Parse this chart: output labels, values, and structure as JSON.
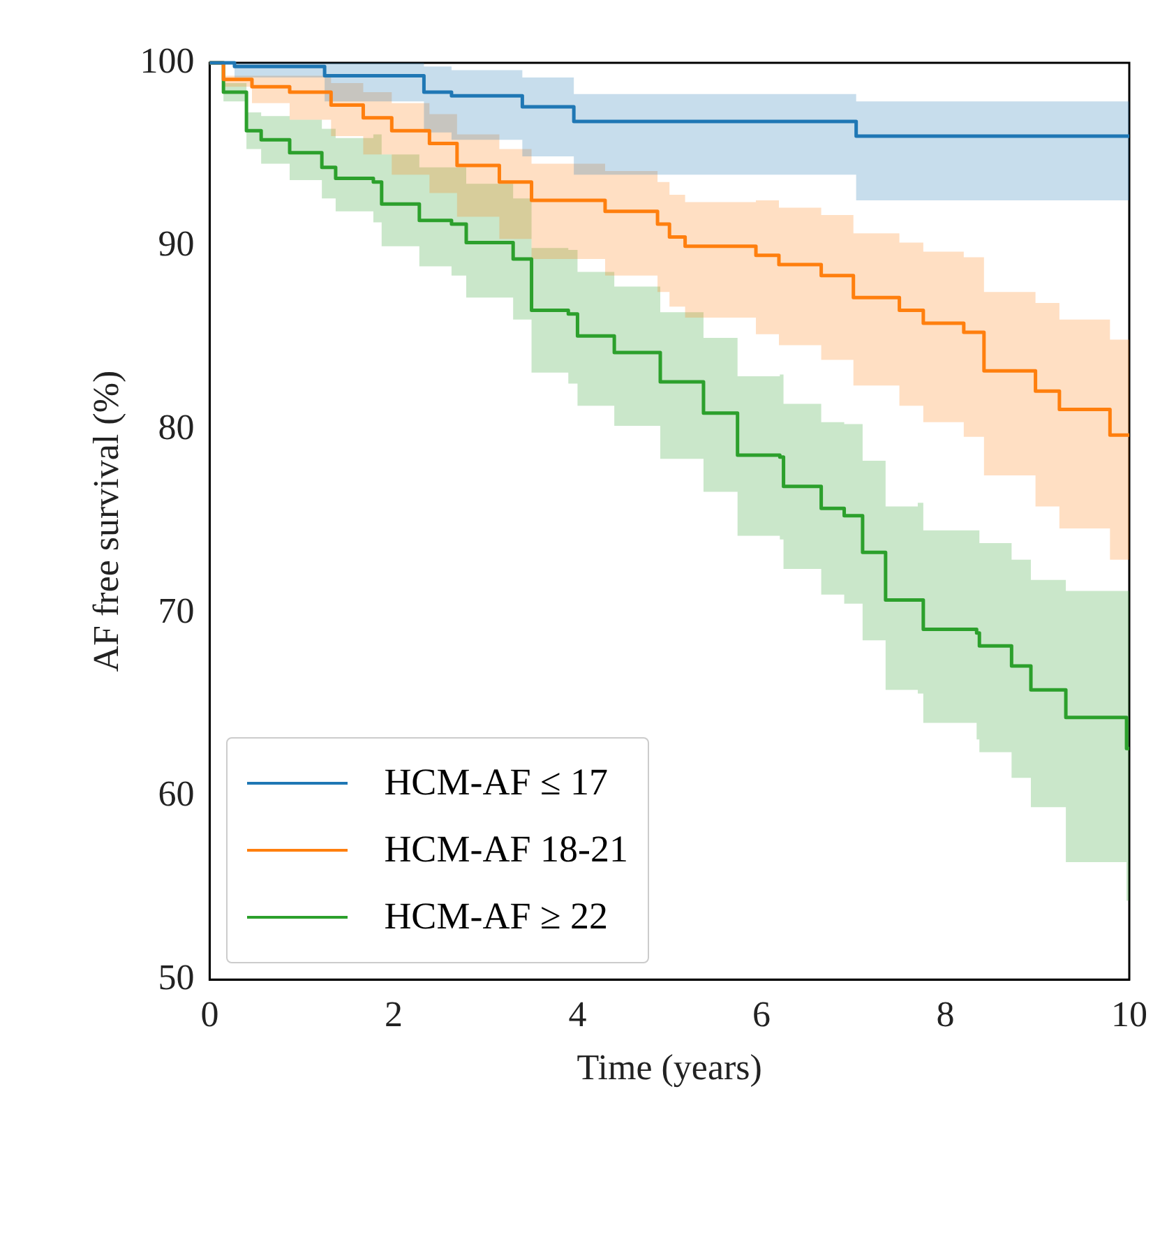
{
  "chart_data": {
    "type": "step",
    "xlabel": "Time (years)",
    "ylabel": "AF free survival (%)",
    "xlim": [
      0,
      10
    ],
    "xticks": [
      0,
      2,
      4,
      6,
      8,
      10
    ],
    "ylim": [
      50,
      100
    ],
    "yticks": [
      50,
      60,
      70,
      80,
      90,
      100
    ],
    "grid": false,
    "legend": "bottom left",
    "marker": "none",
    "line_style": "solid",
    "series": [
      {
        "name": "HCM-AF ≤ 17",
        "color": "#1f77b4",
        "x": [
          0,
          0.27,
          1.25,
          2.33,
          2.63,
          3.4,
          3.96,
          7.03,
          10
        ],
        "values": [
          100,
          99.8,
          99.3,
          98.4,
          98.2,
          97.6,
          96.8,
          96.0,
          96.0
        ],
        "upper": [
          100,
          100,
          100,
          99.8,
          99.6,
          99.2,
          98.3,
          97.9,
          97.9
        ],
        "lower": [
          100,
          99.2,
          97.9,
          96.2,
          95.8,
          94.9,
          93.9,
          92.5,
          92.5
        ]
      },
      {
        "name": "HCM-AF 18-21",
        "color": "#ff7f0e",
        "x": [
          0,
          0.15,
          0.46,
          0.87,
          1.32,
          1.67,
          1.98,
          2.39,
          2.69,
          3.15,
          3.5,
          4.3,
          4.87,
          5.0,
          5.17,
          5.94,
          6.19,
          6.65,
          7.0,
          7.5,
          7.76,
          8.2,
          8.42,
          8.98,
          9.24,
          9.79,
          10
        ],
        "values": [
          100,
          99.1,
          98.7,
          98.4,
          97.7,
          97.0,
          96.3,
          95.6,
          94.4,
          93.5,
          92.5,
          91.9,
          91.2,
          90.5,
          90.0,
          89.5,
          89.0,
          88.4,
          87.2,
          86.5,
          85.8,
          85.3,
          83.2,
          82.1,
          81.1,
          79.7,
          79.7
        ],
        "upper": [
          100,
          99.3,
          99.3,
          99.3,
          98.9,
          98.4,
          97.8,
          97.2,
          96.1,
          95.3,
          94.5,
          94.1,
          93.5,
          92.8,
          92.4,
          92.5,
          92.1,
          91.7,
          90.7,
          90.2,
          89.7,
          89.4,
          87.5,
          86.9,
          86.0,
          84.9,
          85.1
        ],
        "lower": [
          100,
          98.7,
          97.8,
          96.9,
          96.0,
          95.0,
          93.9,
          92.9,
          91.6,
          90.4,
          89.3,
          88.4,
          87.5,
          86.7,
          86.1,
          85.2,
          84.6,
          83.8,
          82.4,
          81.3,
          80.4,
          79.6,
          77.5,
          75.8,
          74.6,
          72.9,
          72.8
        ]
      },
      {
        "name": "HCM-AF ≥ 22",
        "color": "#2ca02c",
        "x": [
          0,
          0.15,
          0.4,
          0.56,
          0.87,
          1.22,
          1.37,
          1.78,
          1.87,
          2.28,
          2.63,
          2.79,
          3.3,
          3.5,
          3.9,
          4.0,
          4.4,
          4.9,
          5.37,
          5.74,
          6.2,
          6.24,
          6.65,
          6.9,
          7.1,
          7.35,
          7.7,
          7.76,
          8.34,
          8.37,
          8.72,
          8.93,
          9.31,
          9.97,
          10
        ],
        "values": [
          100,
          98.4,
          96.3,
          95.8,
          95.1,
          94.3,
          93.7,
          93.5,
          92.3,
          91.4,
          91.2,
          90.2,
          89.3,
          86.5,
          86.3,
          85.1,
          84.2,
          82.6,
          80.9,
          78.6,
          78.5,
          76.9,
          75.7,
          75.3,
          73.3,
          70.7,
          70.7,
          69.1,
          68.9,
          68.2,
          67.1,
          65.8,
          64.3,
          62.6,
          62.6
        ],
        "upper": [
          100,
          98.9,
          97.3,
          97.1,
          96.9,
          96.4,
          95.9,
          96.1,
          95.0,
          94.3,
          94.3,
          93.4,
          92.6,
          89.9,
          89.8,
          88.6,
          87.8,
          86.4,
          85.0,
          82.9,
          83.0,
          81.4,
          80.4,
          80.3,
          78.3,
          75.8,
          76.0,
          74.5,
          74.5,
          73.8,
          72.9,
          71.8,
          71.2,
          71.2,
          71.2
        ],
        "lower": [
          100,
          97.9,
          95.3,
          94.5,
          93.6,
          92.6,
          91.9,
          91.3,
          90.0,
          88.9,
          88.4,
          87.2,
          86.0,
          83.1,
          82.5,
          81.3,
          80.2,
          78.4,
          76.6,
          74.2,
          74.0,
          72.4,
          71.0,
          70.5,
          68.5,
          65.8,
          65.6,
          64.0,
          63.1,
          62.4,
          61.0,
          59.4,
          56.4,
          54.3,
          54.3
        ]
      }
    ]
  }
}
